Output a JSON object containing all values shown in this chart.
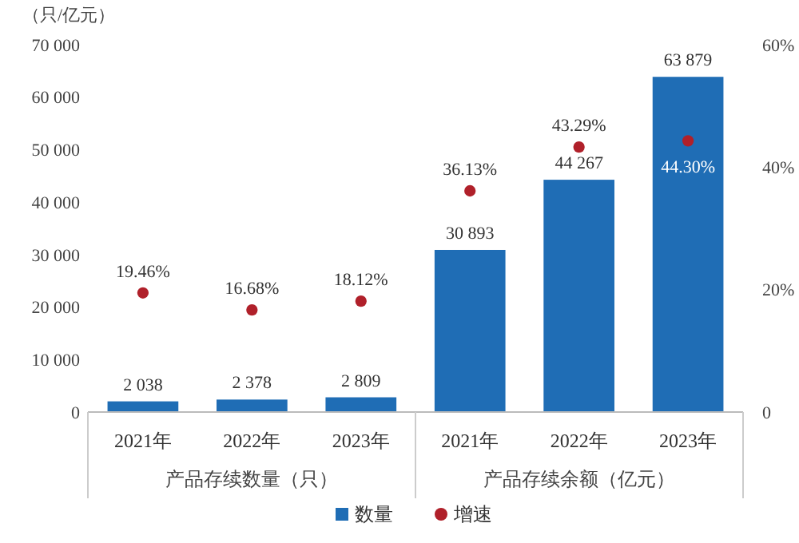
{
  "chart_data": {
    "type": "bar",
    "ylabel": "（只/亿元）",
    "categories": [
      "2021年",
      "2022年",
      "2023年",
      "2021年",
      "2022年",
      "2023年"
    ],
    "series": [
      {
        "name": "数量",
        "color": "#1f6db5",
        "values": [
          2038,
          2378,
          2809,
          30893,
          44267,
          63879
        ],
        "value_labels": [
          "2 038",
          "2 378",
          "2 809",
          "30 893",
          "44 267",
          "63 879"
        ]
      },
      {
        "name": "增速",
        "type": "scatter",
        "axis": "y2",
        "color": "#b0202a",
        "values": [
          19.46,
          16.68,
          18.12,
          36.13,
          43.29,
          44.3
        ],
        "value_labels": [
          "19.46%",
          "16.68%",
          "18.12%",
          "36.13%",
          "43.29%",
          "44.30%"
        ]
      }
    ],
    "ylim": [
      0,
      70000
    ],
    "yticks": [
      {
        "value": 0,
        "label": "0"
      },
      {
        "value": 10000,
        "label": "10 000"
      },
      {
        "value": 20000,
        "label": "20 000"
      },
      {
        "value": 30000,
        "label": "30 000"
      },
      {
        "value": 40000,
        "label": "40 000"
      },
      {
        "value": 50000,
        "label": "50 000"
      },
      {
        "value": 60000,
        "label": "60 000"
      },
      {
        "value": 70000,
        "label": "70 000"
      }
    ],
    "y2lim": [
      0,
      60
    ],
    "y2ticks": [
      {
        "value": 0,
        "label": "0"
      },
      {
        "value": 20,
        "label": "20%"
      },
      {
        "value": 40,
        "label": "40%"
      },
      {
        "value": 60,
        "label": "60%"
      }
    ],
    "annotations": [
      "产品存续数量（只）",
      "产品存续余额（亿元）"
    ],
    "marker": "circle",
    "legend": "bottom",
    "grid": false
  }
}
